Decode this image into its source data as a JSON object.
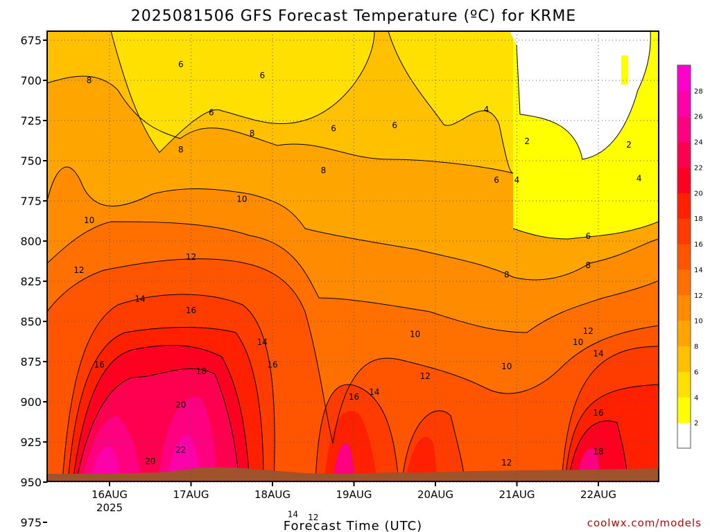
{
  "chart_data": {
    "type": "heatmap",
    "title": "2025081506 GFS Forecast Temperature (ºC) for KRME",
    "xlabel": "Forecast Time (UTC)",
    "ylabel": "",
    "credit": "coolwx.com/models",
    "x_ticks": [
      {
        "label": "16AUG",
        "sub": "2025"
      },
      {
        "label": "17AUG",
        "sub": ""
      },
      {
        "label": "18AUG",
        "sub": ""
      },
      {
        "label": "19AUG",
        "sub": ""
      },
      {
        "label": "20AUG",
        "sub": ""
      },
      {
        "label": "21AUG",
        "sub": ""
      },
      {
        "label": "22AUG",
        "sub": ""
      }
    ],
    "y_ticks": [
      "675",
      "700",
      "725",
      "750",
      "775",
      "800",
      "825",
      "850",
      "875",
      "900",
      "925",
      "950",
      "975"
    ],
    "ylim": [
      975,
      675
    ],
    "grid": true,
    "colorbar": {
      "labels": [
        "2",
        "4",
        "6",
        "8",
        "10",
        "12",
        "14",
        "16",
        "18",
        "20",
        "22",
        "24",
        "26",
        "28"
      ],
      "colors": [
        "#ffffff",
        "#ffff00",
        "#ffe000",
        "#ffc000",
        "#ffa500",
        "#ff8c00",
        "#ff7000",
        "#ff5500",
        "#ff3c00",
        "#ff2000",
        "#ff0020",
        "#ff0050",
        "#ff0080",
        "#ff00aa",
        "#ff00cc"
      ]
    },
    "series": [
      {
        "values": [
          17.5,
          23,
          22,
          8,
          20,
          15,
          12,
          13,
          17
        ],
        "x": [
          "16AUG",
          "17AUG",
          "17AUG",
          "18AUG",
          "19AUG",
          "20AUG",
          "21AUG",
          "22AUG",
          "22AUG"
        ]
      }
    ],
    "contour_labels": [
      {
        "text": "8",
        "x": "15AUG 18Z",
        "p": 700
      },
      {
        "text": "6",
        "x": "16AUG 21Z",
        "p": 690
      },
      {
        "text": "6",
        "x": "17AUG 06Z",
        "p": 720
      },
      {
        "text": "6",
        "x": "17AUG 21Z",
        "p": 697
      },
      {
        "text": "6",
        "x": "18AUG 18Z",
        "p": 730
      },
      {
        "text": "6",
        "x": "19AUG 12Z",
        "p": 728
      },
      {
        "text": "4",
        "x": "20AUG 15Z",
        "p": 718
      },
      {
        "text": "2",
        "x": "21AUG 03Z",
        "p": 738
      },
      {
        "text": "2",
        "x": "22AUG 09Z",
        "p": 740
      },
      {
        "text": "8",
        "x": "16AUG 21Z",
        "p": 743
      },
      {
        "text": "8",
        "x": "17AUG 18Z",
        "p": 733
      },
      {
        "text": "8",
        "x": "18AUG 15Z",
        "p": 756
      },
      {
        "text": "6",
        "x": "20AUG 18Z",
        "p": 762
      },
      {
        "text": "4",
        "x": "21AUG 00Z",
        "p": 762
      },
      {
        "text": "4",
        "x": "22AUG 12Z",
        "p": 761
      },
      {
        "text": "10",
        "x": "15AUG 18Z",
        "p": 787
      },
      {
        "text": "10",
        "x": "17AUG 15Z",
        "p": 774
      },
      {
        "text": "6",
        "x": "21AUG 21Z",
        "p": 797
      },
      {
        "text": "12",
        "x": "17AUG 00Z",
        "p": 810
      },
      {
        "text": "12",
        "x": "15AUG 15Z",
        "p": 818
      },
      {
        "text": "8",
        "x": "20AUG 21Z",
        "p": 821
      },
      {
        "text": "8",
        "x": "21AUG 21Z",
        "p": 815
      },
      {
        "text": "14",
        "x": "16AUG 09Z",
        "p": 836
      },
      {
        "text": "16",
        "x": "17AUG 00Z",
        "p": 843
      },
      {
        "text": "10",
        "x": "19AUG 18Z",
        "p": 858
      },
      {
        "text": "10",
        "x": "21AUG 18Z",
        "p": 863
      },
      {
        "text": "14",
        "x": "17AUG 21Z",
        "p": 863
      },
      {
        "text": "12",
        "x": "21AUG 21Z",
        "p": 856
      },
      {
        "text": "16",
        "x": "15AUG 21Z",
        "p": 877
      },
      {
        "text": "18",
        "x": "17AUG 03Z",
        "p": 881
      },
      {
        "text": "16",
        "x": "18AUG 00Z",
        "p": 877
      },
      {
        "text": "10",
        "x": "20AUG 21Z",
        "p": 878
      },
      {
        "text": "14",
        "x": "22AUG 00Z",
        "p": 870
      },
      {
        "text": "12",
        "x": "19AUG 21Z",
        "p": 884
      },
      {
        "text": "20",
        "x": "16AUG 21Z",
        "p": 902
      },
      {
        "text": "16",
        "x": "19AUG 00Z",
        "p": 897
      },
      {
        "text": "14",
        "x": "19AUG 06Z",
        "p": 894
      },
      {
        "text": "16",
        "x": "22AUG 00Z",
        "p": 907
      },
      {
        "text": "22",
        "x": "16AUG 21Z",
        "p": 930
      },
      {
        "text": "20",
        "x": "16AUG 12Z",
        "p": 937
      },
      {
        "text": "12",
        "x": "20AUG 21Z",
        "p": 938
      },
      {
        "text": "18",
        "x": "22AUG 00Z",
        "p": 931
      },
      {
        "text": "14",
        "x": "18AUG 06Z",
        "p": 970
      },
      {
        "text": "12",
        "x": "18AUG 12Z",
        "p": 972
      },
      {
        "text": "14",
        "x": "20AUG 18Z",
        "p": 988
      }
    ]
  }
}
